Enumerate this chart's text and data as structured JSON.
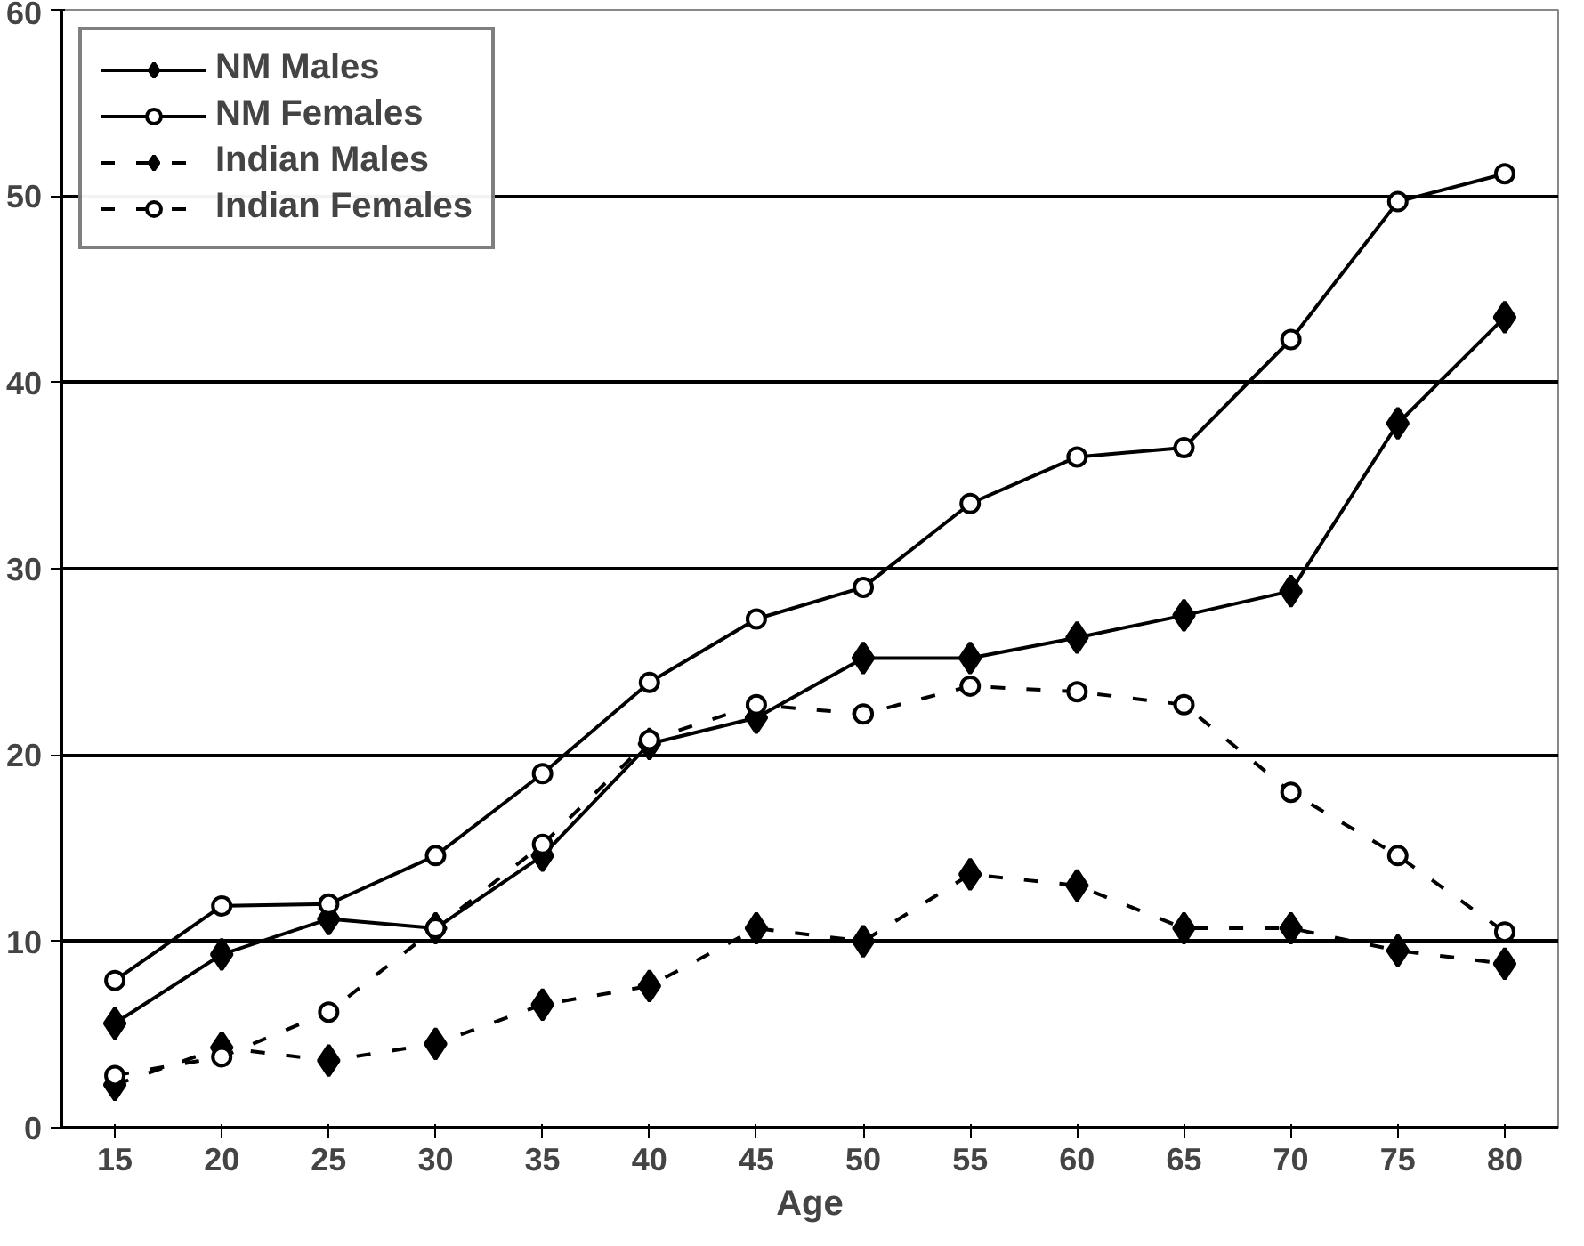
{
  "chart_data": {
    "type": "line",
    "xlabel": "Age",
    "categories": [
      "15",
      "20",
      "25",
      "30",
      "35",
      "40",
      "45",
      "50",
      "55",
      "60",
      "65",
      "70",
      "75",
      "80"
    ],
    "ylim": [
      0,
      60
    ],
    "yticks": [
      0,
      10,
      20,
      30,
      40,
      50,
      60
    ],
    "grid": "y",
    "legend": "top left",
    "series": [
      {
        "name": "NM Males",
        "color": "#000000",
        "marker": "diamond",
        "line_style": "solid",
        "values": [
          5.6,
          9.3,
          11.2,
          10.7,
          14.6,
          20.6,
          22,
          25.2,
          25.2,
          26.3,
          27.5,
          28.8,
          37.8,
          43.5
        ]
      },
      {
        "name": "NM Females",
        "color": "#000000",
        "marker": "circle",
        "line_style": "solid",
        "values": [
          7.9,
          11.9,
          12,
          14.6,
          19,
          23.9,
          27.3,
          29,
          33.5,
          36,
          36.5,
          42.3,
          49.7,
          51.2
        ]
      },
      {
        "name": "Indian Males",
        "color": "#000000",
        "marker": "diamond",
        "line_style": "dashed",
        "values": [
          2.3,
          4.3,
          3.6,
          4.5,
          6.6,
          7.6,
          10.7,
          10,
          13.6,
          13,
          10.7,
          10.7,
          9.5,
          8.8
        ]
      },
      {
        "name": "Indian Females",
        "color": "#000000",
        "marker": "circle",
        "line_style": "dashed",
        "values": [
          2.8,
          3.8,
          6.2,
          10.7,
          15.2,
          20.8,
          22.7,
          22.2,
          23.7,
          23.4,
          22.7,
          18,
          14.6,
          10.5
        ]
      }
    ]
  }
}
